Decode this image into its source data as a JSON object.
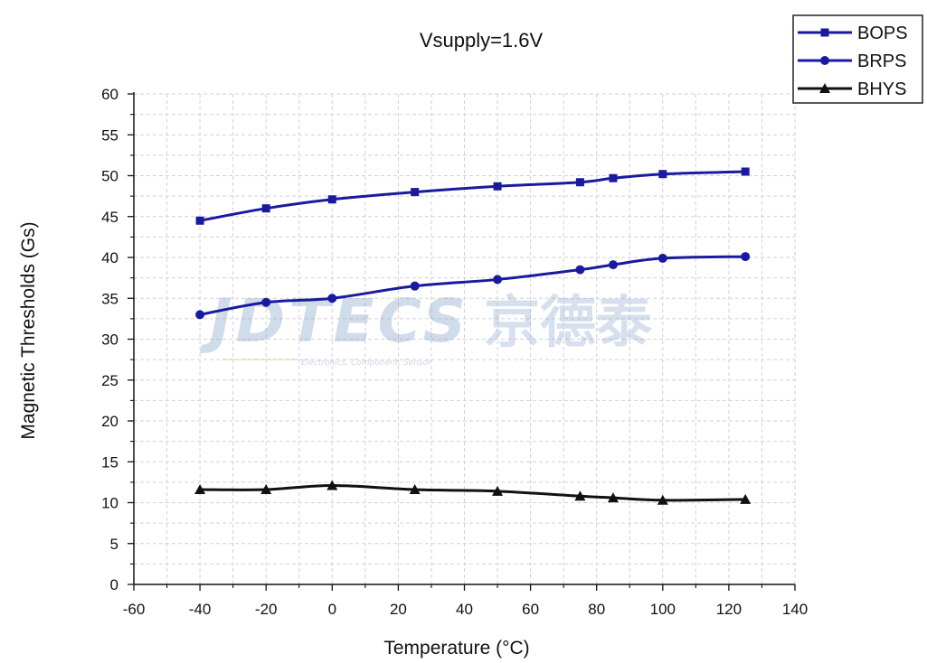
{
  "chart_data": {
    "type": "line",
    "title": "Vsupply=1.6V",
    "xlabel": "Temperature (°C)",
    "ylabel": "Magnetic Thresholds (Gs)",
    "xlim": [
      -60,
      140
    ],
    "ylim": [
      0,
      60
    ],
    "x_ticks": [
      -60,
      -40,
      -20,
      0,
      20,
      40,
      60,
      80,
      100,
      120,
      140
    ],
    "y_ticks": [
      0,
      5,
      10,
      15,
      20,
      25,
      30,
      35,
      40,
      45,
      50,
      55,
      60
    ],
    "x_tick_labels": [
      "-60",
      "-40",
      "-20",
      "0",
      "20",
      "40",
      "60",
      "80",
      "100",
      "120",
      "140"
    ],
    "y_tick_labels": [
      "0",
      "5",
      "10",
      "15",
      "20",
      "25",
      "30",
      "35",
      "40",
      "45",
      "50",
      "55",
      "60"
    ],
    "grid": true,
    "legend_position": "top-right",
    "series": [
      {
        "name": "BOPS",
        "marker": "square",
        "color": "#1a1aa0",
        "x": [
          -40,
          -20,
          0,
          25,
          50,
          75,
          85,
          100,
          125
        ],
        "values": [
          44.5,
          46.0,
          47.1,
          48.0,
          48.7,
          49.2,
          49.7,
          50.2,
          50.5
        ]
      },
      {
        "name": "BRPS",
        "marker": "circle",
        "color": "#1a1aa0",
        "x": [
          -40,
          -20,
          0,
          25,
          50,
          75,
          85,
          100,
          125
        ],
        "values": [
          33.0,
          34.5,
          35.0,
          36.5,
          37.3,
          38.5,
          39.1,
          39.9,
          40.1
        ]
      },
      {
        "name": "BHYS",
        "marker": "triangle",
        "color": "#111111",
        "x": [
          -40,
          -20,
          0,
          25,
          50,
          75,
          85,
          100,
          125
        ],
        "values": [
          11.6,
          11.6,
          12.1,
          11.6,
          11.4,
          10.8,
          10.6,
          10.3,
          10.4
        ]
      }
    ]
  },
  "watermark": {
    "brand": "JDTECS 京德泰",
    "tagline": "Electronics, Component, Sensor"
  }
}
